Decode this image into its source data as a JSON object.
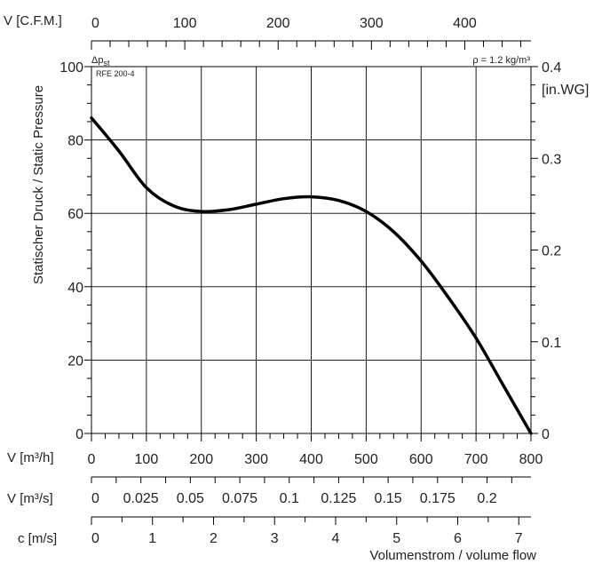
{
  "chart_data": {
    "type": "line",
    "model_label": "RFE 200-4",
    "density_label": "ρ = 1.2 kg/m³",
    "y_left": {
      "symbol": "Δp",
      "subscript": "st",
      "label": "Statischer Druck / Static Pressure",
      "range": [
        0,
        100
      ],
      "ticks": [
        0,
        20,
        40,
        60,
        80,
        100
      ]
    },
    "y_right": {
      "unit": "[in.WG]",
      "range": [
        0,
        0.4
      ],
      "ticks": [
        "0",
        "0.1",
        "0.2",
        "0.3",
        "0.4"
      ]
    },
    "x_m3h": {
      "symbol": "V",
      "unit": "[m³/h]",
      "range": [
        0,
        800
      ],
      "ticks": [
        0,
        100,
        200,
        300,
        400,
        500,
        600,
        700,
        800
      ]
    },
    "x_cfm": {
      "symbol": "V",
      "unit": "[C.F.M.]",
      "range": [
        0,
        470.9
      ],
      "ticks": [
        0,
        100,
        200,
        300,
        400
      ]
    },
    "x_m3s": {
      "symbol": "V",
      "unit": "[m³/s]",
      "ticks": [
        "0",
        "0.025",
        "0.05",
        "0.075",
        "0.1",
        "0.125",
        "0.15",
        "0.175",
        "0.2"
      ]
    },
    "x_ms": {
      "unit": "c [m/s]",
      "ticks": [
        0,
        1,
        2,
        3,
        4,
        5,
        6,
        7
      ]
    },
    "x_footer_label": "Volumenstrom / volume flow",
    "grid": true,
    "series": [
      {
        "color": "#000000",
        "points": [
          [
            0,
            86
          ],
          [
            50,
            77
          ],
          [
            100,
            67
          ],
          [
            150,
            62
          ],
          [
            200,
            60.5
          ],
          [
            250,
            61
          ],
          [
            300,
            62.5
          ],
          [
            350,
            64
          ],
          [
            400,
            64.5
          ],
          [
            450,
            63.5
          ],
          [
            500,
            60.5
          ],
          [
            550,
            55
          ],
          [
            600,
            47
          ],
          [
            650,
            37
          ],
          [
            700,
            26
          ],
          [
            750,
            13
          ],
          [
            800,
            0
          ]
        ]
      }
    ]
  }
}
